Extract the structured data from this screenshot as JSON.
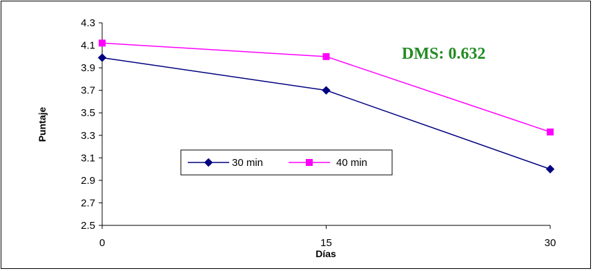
{
  "chart_data": {
    "type": "line",
    "x": [
      0,
      15,
      30
    ],
    "series": [
      {
        "name": "30 min",
        "values": [
          3.99,
          3.7,
          3.0
        ],
        "color": "#000080",
        "marker": "diamond"
      },
      {
        "name": "40 min",
        "values": [
          4.12,
          4.0,
          3.33
        ],
        "color": "#ff00ff",
        "marker": "square"
      }
    ],
    "xlabel": "Días",
    "ylabel": "Puntaje",
    "xlim": [
      0,
      30
    ],
    "ylim": [
      2.5,
      4.3
    ],
    "x_ticks": [
      "0",
      "15",
      "30"
    ],
    "y_ticks": [
      "2.5",
      "2.7",
      "2.9",
      "3.1",
      "3.3",
      "3.5",
      "3.7",
      "3.9",
      "4.1",
      "4.3"
    ],
    "annotation": {
      "text": "DMS: 0.632",
      "color": "#228b22"
    },
    "grid": false,
    "legend_position": "center-left"
  }
}
